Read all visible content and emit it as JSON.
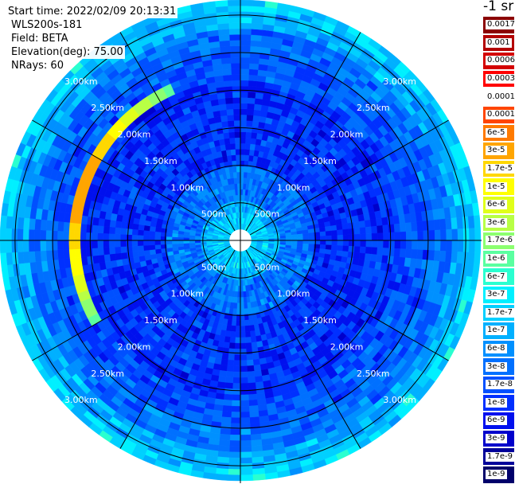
{
  "header": {
    "start_time": "Start time: 2022/02/09 20:13:31",
    "instrument": "WLS200s-181",
    "field": "Field: BETA",
    "elevation": "Elevation(deg): 75.00",
    "nrays": "NRays: 60"
  },
  "colorbar": {
    "unit": "-1 sr",
    "labels": [
      "0.0017",
      "0.001",
      "0.0006",
      "0.0003",
      "0.00017",
      "0.0001",
      "6e-5",
      "3e-5",
      "1.7e-5",
      "1e-5",
      "6e-6",
      "3e-6",
      "1.7e-6",
      "1e-6",
      "6e-7",
      "3e-7",
      "1.7e-7",
      "1e-7",
      "6e-8",
      "3e-8",
      "1.7e-8",
      "1e-8",
      "6e-9",
      "3e-9",
      "1.7e-9",
      "1e-9"
    ],
    "colors": [
      "#8b0000",
      "#b30000",
      "#d40000",
      "#ff0000",
      "#ffffff",
      "#ff4500",
      "#ff7a00",
      "#ffa500",
      "#ffd700",
      "#ffff00",
      "#e0ff1a",
      "#b8ff45",
      "#8cff70",
      "#5affa0",
      "#2affd0",
      "#00f0ff",
      "#00d0ff",
      "#00b0ff",
      "#0090ff",
      "#0070ff",
      "#0050ff",
      "#0030ff",
      "#0010ee",
      "#0000cc",
      "#00009a",
      "#00006a"
    ]
  },
  "chart_data": {
    "type": "heatmap",
    "projection": "polar",
    "field": "BETA",
    "elevation_deg": 75.0,
    "n_rays": 60,
    "range_unit": "km",
    "range_rings": [
      {
        "range_km": 0.5,
        "label": "500m"
      },
      {
        "range_km": 1.0,
        "label": "1.00km"
      },
      {
        "range_km": 1.5,
        "label": "1.50km"
      },
      {
        "range_km": 2.0,
        "label": "2.00km"
      },
      {
        "range_km": 2.5,
        "label": "2.50km"
      },
      {
        "range_km": 3.0,
        "label": "3.00km"
      }
    ],
    "max_range_km": 3.2,
    "radial_spokes_deg": [
      0,
      30,
      60,
      90,
      120,
      150,
      180,
      210,
      240,
      270,
      300,
      330
    ],
    "features": [
      {
        "description": "enhanced backscatter arc",
        "azimuth_deg": [
          240,
          335
        ],
        "range_km": [
          2.1,
          2.25
        ],
        "beta_sr_inv": "1e-5 to 3e-5"
      }
    ],
    "typical_beta_sr_inv": "6e-9 to 3e-8"
  }
}
